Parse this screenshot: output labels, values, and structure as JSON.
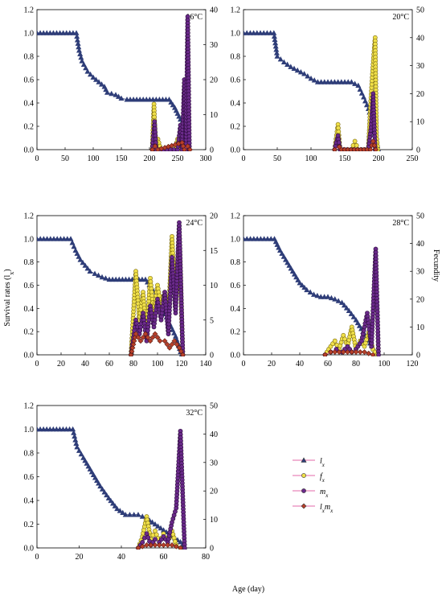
{
  "figure": {
    "ylabel_left": "Survival rates (l",
    "ylabel_left_sub": "x",
    "ylabel_left_close": ")",
    "ylabel_right": "Fecundity",
    "xlabel": "Age (day)"
  },
  "legend": [
    {
      "main": "l",
      "sub": "x",
      "marker": "triangle",
      "color": "#5a5aa0"
    },
    {
      "main": "f",
      "sub": "x",
      "marker": "circle",
      "color": "#f0e04a"
    },
    {
      "main": "m",
      "sub": "x",
      "marker": "circle",
      "color": "#6a2a8a"
    },
    {
      "main": "l",
      "sub": "x",
      "main2": "m",
      "sub2": "x",
      "marker": "diamond",
      "color": "#b8402a"
    }
  ],
  "colors": {
    "lx": "#2e3d78",
    "fx": "#f0e04a",
    "mx": "#6a2a8a",
    "lxmx": "#b8402a",
    "line": "#e36aa8"
  },
  "chart_data": [
    {
      "type": "line",
      "title": "16°C",
      "xlim": [
        0,
        300
      ],
      "xticks": [
        0,
        50,
        100,
        150,
        200,
        250,
        300
      ],
      "ylim": [
        0,
        1.2
      ],
      "yticks": [
        0.0,
        0.2,
        0.4,
        0.6,
        0.8,
        1.0,
        1.2
      ],
      "y2lim": [
        0,
        40
      ],
      "y2ticks": [
        0,
        10,
        20,
        30,
        40
      ],
      "lx": [
        [
          0,
          1
        ],
        [
          70,
          1
        ],
        [
          75,
          0.85
        ],
        [
          80,
          0.76
        ],
        [
          90,
          0.67
        ],
        [
          100,
          0.62
        ],
        [
          110,
          0.58
        ],
        [
          120,
          0.54
        ],
        [
          125,
          0.49
        ],
        [
          140,
          0.47
        ],
        [
          150,
          0.44
        ],
        [
          160,
          0.43
        ],
        [
          235,
          0.43
        ],
        [
          245,
          0.36
        ],
        [
          255,
          0.26
        ],
        [
          265,
          0.15
        ],
        [
          270,
          0
        ]
      ],
      "fx": [
        [
          205,
          0
        ],
        [
          208,
          13
        ],
        [
          211,
          0
        ],
        [
          215,
          3
        ],
        [
          220,
          0
        ],
        [
          245,
          0
        ],
        [
          250,
          3
        ],
        [
          255,
          0
        ],
        [
          262,
          7
        ],
        [
          266,
          0
        ]
      ],
      "mx": [
        [
          205,
          0
        ],
        [
          209,
          8
        ],
        [
          212,
          0
        ],
        [
          250,
          0
        ],
        [
          255,
          7
        ],
        [
          258,
          0
        ],
        [
          262,
          20
        ],
        [
          265,
          0
        ],
        [
          268,
          38
        ],
        [
          271,
          0
        ]
      ],
      "lxmx": [
        [
          205,
          0
        ],
        [
          210,
          1
        ],
        [
          215,
          0
        ],
        [
          258,
          2
        ],
        [
          262,
          0
        ],
        [
          268,
          1
        ],
        [
          272,
          0
        ]
      ]
    },
    {
      "type": "line",
      "title": "20°C",
      "xlim": [
        0,
        250
      ],
      "xticks": [
        0,
        50,
        100,
        150,
        200,
        250
      ],
      "ylim": [
        0,
        1.2
      ],
      "yticks": [
        0.0,
        0.2,
        0.4,
        0.6,
        0.8,
        1.0,
        1.2
      ],
      "y2lim": [
        0,
        50
      ],
      "y2ticks": [
        0,
        10,
        20,
        30,
        40,
        50
      ],
      "lx": [
        [
          0,
          1
        ],
        [
          45,
          1
        ],
        [
          50,
          0.8
        ],
        [
          60,
          0.75
        ],
        [
          70,
          0.71
        ],
        [
          80,
          0.68
        ],
        [
          90,
          0.65
        ],
        [
          100,
          0.61
        ],
        [
          110,
          0.58
        ],
        [
          160,
          0.58
        ],
        [
          170,
          0.55
        ],
        [
          178,
          0.45
        ],
        [
          185,
          0.35
        ],
        [
          190,
          0.26
        ],
        [
          195,
          0.1
        ],
        [
          200,
          0
        ]
      ],
      "fx": [
        [
          135,
          0
        ],
        [
          140,
          9
        ],
        [
          143,
          0
        ],
        [
          160,
          0
        ],
        [
          165,
          3
        ],
        [
          170,
          0
        ],
        [
          185,
          0
        ],
        [
          188,
          15
        ],
        [
          191,
          27
        ],
        [
          193,
          34
        ],
        [
          195,
          40
        ],
        [
          197,
          5
        ],
        [
          199,
          0
        ]
      ],
      "mx": [
        [
          135,
          0
        ],
        [
          140,
          5
        ],
        [
          143,
          0
        ],
        [
          185,
          0
        ],
        [
          189,
          8
        ],
        [
          192,
          20
        ],
        [
          195,
          0
        ]
      ],
      "lxmx": [
        [
          135,
          0
        ],
        [
          142,
          1
        ],
        [
          145,
          0
        ],
        [
          188,
          0
        ],
        [
          192,
          3
        ],
        [
          196,
          0
        ]
      ]
    },
    {
      "type": "line",
      "title": "24°C",
      "xlim": [
        0,
        140
      ],
      "xticks": [
        0,
        20,
        40,
        60,
        80,
        100,
        120,
        140
      ],
      "ylim": [
        0,
        1.2
      ],
      "yticks": [
        0.0,
        0.2,
        0.4,
        0.6,
        0.8,
        1.0,
        1.2
      ],
      "y2lim": [
        0,
        20
      ],
      "y2ticks": [
        0,
        5,
        10,
        15,
        20
      ],
      "lx": [
        [
          0,
          1
        ],
        [
          28,
          1
        ],
        [
          32,
          0.9
        ],
        [
          36,
          0.82
        ],
        [
          40,
          0.77
        ],
        [
          44,
          0.72
        ],
        [
          48,
          0.7
        ],
        [
          54,
          0.67
        ],
        [
          60,
          0.65
        ],
        [
          90,
          0.65
        ],
        [
          95,
          0.58
        ],
        [
          100,
          0.49
        ],
        [
          105,
          0.38
        ],
        [
          110,
          0.27
        ],
        [
          115,
          0.16
        ],
        [
          120,
          0
        ]
      ],
      "fx": [
        [
          78,
          0
        ],
        [
          82,
          12
        ],
        [
          85,
          5
        ],
        [
          88,
          9
        ],
        [
          91,
          3
        ],
        [
          94,
          11
        ],
        [
          97,
          6
        ],
        [
          100,
          10
        ],
        [
          103,
          7
        ],
        [
          106,
          9
        ],
        [
          109,
          5
        ],
        [
          112,
          17
        ],
        [
          115,
          7
        ],
        [
          118,
          17
        ],
        [
          121,
          0
        ]
      ],
      "mx": [
        [
          78,
          0
        ],
        [
          82,
          5
        ],
        [
          85,
          3
        ],
        [
          88,
          6
        ],
        [
          91,
          2
        ],
        [
          94,
          7
        ],
        [
          97,
          4
        ],
        [
          100,
          8
        ],
        [
          103,
          5
        ],
        [
          106,
          9
        ],
        [
          109,
          3
        ],
        [
          112,
          14
        ],
        [
          115,
          6
        ],
        [
          118,
          19
        ],
        [
          121,
          0
        ]
      ],
      "lxmx": [
        [
          78,
          0
        ],
        [
          82,
          3
        ],
        [
          86,
          2
        ],
        [
          90,
          3
        ],
        [
          94,
          2
        ],
        [
          98,
          3
        ],
        [
          102,
          2
        ],
        [
          106,
          2
        ],
        [
          110,
          1
        ],
        [
          114,
          2
        ],
        [
          118,
          1
        ],
        [
          121,
          0
        ]
      ]
    },
    {
      "type": "line",
      "title": "28°C",
      "xlim": [
        0,
        120
      ],
      "xticks": [
        0,
        20,
        40,
        60,
        80,
        100,
        120
      ],
      "ylim": [
        0,
        1.2
      ],
      "yticks": [
        0.0,
        0.2,
        0.4,
        0.6,
        0.8,
        1.0,
        1.2
      ],
      "y2lim": [
        0,
        50
      ],
      "y2ticks": [
        0,
        10,
        20,
        30,
        40,
        50
      ],
      "lx": [
        [
          0,
          1
        ],
        [
          22,
          1
        ],
        [
          26,
          0.9
        ],
        [
          30,
          0.82
        ],
        [
          35,
          0.72
        ],
        [
          40,
          0.62
        ],
        [
          45,
          0.56
        ],
        [
          50,
          0.52
        ],
        [
          55,
          0.5
        ],
        [
          60,
          0.5
        ],
        [
          65,
          0.48
        ],
        [
          70,
          0.45
        ],
        [
          75,
          0.38
        ],
        [
          80,
          0.3
        ],
        [
          85,
          0.2
        ],
        [
          90,
          0.1
        ],
        [
          95,
          0
        ]
      ],
      "fx": [
        [
          58,
          0
        ],
        [
          62,
          3
        ],
        [
          65,
          5
        ],
        [
          68,
          2
        ],
        [
          71,
          7
        ],
        [
          74,
          3
        ],
        [
          77,
          10
        ],
        [
          80,
          2
        ],
        [
          83,
          5
        ],
        [
          86,
          3
        ],
        [
          89,
          8
        ],
        [
          92,
          2
        ],
        [
          95,
          0
        ]
      ],
      "mx": [
        [
          58,
          0
        ],
        [
          62,
          1
        ],
        [
          66,
          2
        ],
        [
          70,
          1
        ],
        [
          74,
          3
        ],
        [
          77,
          1
        ],
        [
          80,
          2
        ],
        [
          84,
          5
        ],
        [
          88,
          15
        ],
        [
          91,
          3
        ],
        [
          94,
          38
        ],
        [
          96,
          0
        ]
      ],
      "lxmx": [
        [
          58,
          0
        ],
        [
          62,
          1
        ],
        [
          68,
          1
        ],
        [
          74,
          1
        ],
        [
          80,
          1
        ],
        [
          86,
          1
        ],
        [
          92,
          0
        ]
      ]
    },
    {
      "type": "line",
      "title": "32°C",
      "xlim": [
        0,
        80
      ],
      "xticks": [
        0,
        20,
        40,
        60,
        80
      ],
      "ylim": [
        0,
        1.2
      ],
      "yticks": [
        0.0,
        0.2,
        0.4,
        0.6,
        0.8,
        1.0,
        1.2
      ],
      "y2lim": [
        0,
        50
      ],
      "y2ticks": [
        0,
        10,
        20,
        30,
        40,
        50
      ],
      "lx": [
        [
          0,
          1
        ],
        [
          17,
          1
        ],
        [
          19,
          0.85
        ],
        [
          22,
          0.76
        ],
        [
          26,
          0.64
        ],
        [
          30,
          0.52
        ],
        [
          34,
          0.42
        ],
        [
          38,
          0.33
        ],
        [
          42,
          0.28
        ],
        [
          48,
          0.28
        ],
        [
          52,
          0.25
        ],
        [
          56,
          0.2
        ],
        [
          60,
          0.15
        ],
        [
          64,
          0.1
        ],
        [
          68,
          0.05
        ],
        [
          70,
          0
        ]
      ],
      "fx": [
        [
          48,
          0
        ],
        [
          50,
          4
        ],
        [
          52,
          11
        ],
        [
          54,
          3
        ],
        [
          56,
          6
        ],
        [
          58,
          2
        ],
        [
          60,
          5
        ],
        [
          62,
          2
        ],
        [
          64,
          6
        ],
        [
          66,
          1
        ],
        [
          68,
          0
        ]
      ],
      "mx": [
        [
          48,
          0
        ],
        [
          50,
          2
        ],
        [
          52,
          5
        ],
        [
          54,
          1
        ],
        [
          56,
          3
        ],
        [
          58,
          2
        ],
        [
          60,
          4
        ],
        [
          62,
          2
        ],
        [
          64,
          9
        ],
        [
          66,
          14
        ],
        [
          68,
          41
        ],
        [
          70,
          0
        ]
      ],
      "lxmx": [
        [
          48,
          0
        ],
        [
          52,
          1
        ],
        [
          56,
          1
        ],
        [
          60,
          1
        ],
        [
          64,
          1
        ],
        [
          68,
          0
        ]
      ]
    }
  ]
}
